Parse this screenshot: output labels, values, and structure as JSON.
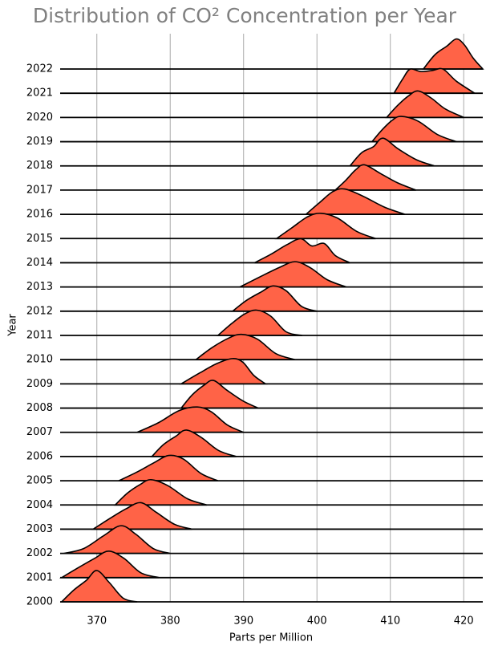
{
  "chart_data": {
    "type": "ridgeline",
    "title": "Distribution of CO² Concentration per Year",
    "xlabel": "Parts per Million",
    "ylabel": "Year",
    "color": "#ff6347",
    "grid": true,
    "xlim": [
      365,
      422.6
    ],
    "xticks": [
      370,
      380,
      390,
      400,
      410,
      420
    ],
    "series": [
      {
        "name": "2022",
        "x": [
          414.5,
          416.1,
          417.7,
          419,
          420.1,
          421.3,
          422.6
        ],
        "values": [
          0,
          0.6,
          0.95,
          1.25,
          1.0,
          0.45,
          0
        ]
      },
      {
        "name": "2021",
        "x": [
          410.5,
          411.7,
          412.7,
          414.2,
          415.8,
          417.2,
          419,
          421.5
        ],
        "values": [
          0,
          0.6,
          1.0,
          0.9,
          0.95,
          1.0,
          0.5,
          0
        ]
      },
      {
        "name": "2020",
        "x": [
          409.5,
          411,
          412.5,
          413.8,
          415.6,
          417.5,
          420
        ],
        "values": [
          0,
          0.5,
          0.9,
          1.1,
          0.8,
          0.35,
          0
        ]
      },
      {
        "name": "2019",
        "x": [
          407.5,
          408.9,
          410.3,
          411.5,
          413.8,
          416.4,
          419
        ],
        "values": [
          0,
          0.5,
          0.9,
          1.05,
          0.85,
          0.3,
          0
        ]
      },
      {
        "name": "2018",
        "x": [
          404.5,
          406.1,
          407.7,
          409,
          411.1,
          413.6,
          416
        ],
        "values": [
          0,
          0.55,
          0.8,
          1.15,
          0.7,
          0.25,
          0
        ]
      },
      {
        "name": "2017",
        "x": [
          402.5,
          403.9,
          405.3,
          406.5,
          408.6,
          411,
          413.5
        ],
        "values": [
          0,
          0.4,
          0.85,
          1.05,
          0.7,
          0.3,
          0
        ]
      },
      {
        "name": "2016",
        "x": [
          398.5,
          400.4,
          402.2,
          403.8,
          406.3,
          409.2,
          412
        ],
        "values": [
          0,
          0.5,
          0.95,
          1.05,
          0.75,
          0.3,
          0
        ]
      },
      {
        "name": "2015",
        "x": [
          394.5,
          396.6,
          398.7,
          400.5,
          402.8,
          405.4,
          408
        ],
        "values": [
          0,
          0.45,
          0.9,
          1.05,
          0.85,
          0.3,
          0
        ]
      },
      {
        "name": "2014",
        "x": [
          391.5,
          393.7,
          395.9,
          397.8,
          399.3,
          401,
          402.5,
          404.5
        ],
        "values": [
          0,
          0.35,
          0.75,
          1.0,
          0.7,
          0.8,
          0.3,
          0
        ]
      },
      {
        "name": "2013",
        "x": [
          389.5,
          392.1,
          394.8,
          397,
          399.1,
          401.4,
          404
        ],
        "values": [
          0,
          0.4,
          0.8,
          1.05,
          0.8,
          0.3,
          0
        ]
      },
      {
        "name": "2012",
        "x": [
          388.5,
          390.4,
          392.4,
          394,
          395.8,
          397.9,
          400
        ],
        "values": [
          0,
          0.45,
          0.8,
          1.05,
          0.85,
          0.2,
          0
        ]
      },
      {
        "name": "2011",
        "x": [
          386.5,
          388.4,
          390.2,
          391.8,
          393.7,
          395.8,
          398
        ],
        "values": [
          0,
          0.5,
          0.9,
          1.05,
          0.8,
          0.15,
          0
        ]
      },
      {
        "name": "2010",
        "x": [
          383.5,
          385.7,
          388,
          389.7,
          391.9,
          394.4,
          397
        ],
        "values": [
          0,
          0.5,
          0.9,
          1.05,
          0.85,
          0.25,
          0
        ]
      },
      {
        "name": "2009",
        "x": [
          381.5,
          384,
          386.4,
          388.5,
          389.9,
          391.4,
          393
        ],
        "values": [
          0,
          0.45,
          0.85,
          1.05,
          0.9,
          0.35,
          0
        ]
      },
      {
        "name": "2008",
        "x": [
          381.5,
          383,
          384.6,
          385.9,
          387.7,
          389.9,
          392
        ],
        "values": [
          0,
          0.55,
          0.95,
          1.15,
          0.75,
          0.3,
          0
        ]
      },
      {
        "name": "2007",
        "x": [
          375.5,
          378.4,
          381.2,
          383.7,
          385.6,
          387.8,
          390
        ],
        "values": [
          0,
          0.4,
          0.9,
          1.05,
          0.85,
          0.3,
          0
        ]
      },
      {
        "name": "2006",
        "x": [
          377.5,
          379.1,
          380.8,
          382.2,
          384.2,
          386.6,
          389
        ],
        "values": [
          0,
          0.5,
          0.85,
          1.1,
          0.8,
          0.25,
          0
        ]
      },
      {
        "name": "2005",
        "x": [
          373,
          375.4,
          377.8,
          379.8,
          381.8,
          384.2,
          386.5
        ],
        "values": [
          0,
          0.35,
          0.75,
          1.05,
          0.9,
          0.3,
          0
        ]
      },
      {
        "name": "2004",
        "x": [
          372.5,
          374.2,
          375.9,
          377.4,
          379.7,
          382.4,
          385
        ],
        "values": [
          0,
          0.5,
          0.85,
          1.05,
          0.8,
          0.25,
          0
        ]
      },
      {
        "name": "2003",
        "x": [
          369.5,
          371.8,
          374,
          376,
          378.1,
          380.6,
          383
        ],
        "values": [
          0,
          0.45,
          0.85,
          1.1,
          0.7,
          0.2,
          0
        ]
      },
      {
        "name": "2002",
        "x": [
          365.5,
          368.2,
          371,
          373.3,
          375.3,
          377.7,
          380
        ],
        "values": [
          0,
          0.2,
          0.75,
          1.15,
          0.8,
          0.2,
          0
        ]
      },
      {
        "name": "2001",
        "x": [
          365.2,
          367.4,
          369.7,
          371.6,
          373.7,
          376,
          378.5
        ],
        "values": [
          0,
          0.4,
          0.8,
          1.1,
          0.8,
          0.2,
          0
        ]
      },
      {
        "name": "2000",
        "x": [
          365.2,
          366.9,
          368.6,
          370,
          371.7,
          373.6,
          375.5
        ],
        "values": [
          0,
          0.5,
          0.9,
          1.3,
          0.8,
          0.15,
          0
        ]
      }
    ]
  }
}
